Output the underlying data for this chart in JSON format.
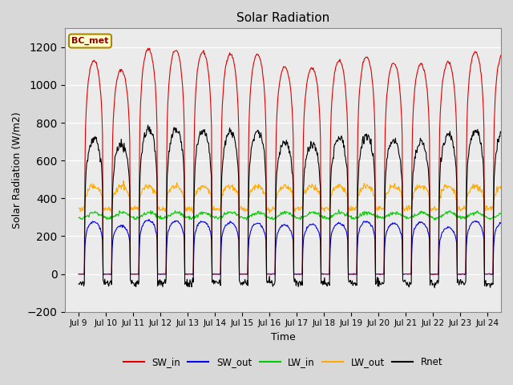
{
  "title": "Solar Radiation",
  "xlabel": "Time",
  "ylabel": "Solar Radiation (W/m2)",
  "ylim": [
    -200,
    1300
  ],
  "yticks": [
    -200,
    0,
    200,
    400,
    600,
    800,
    1000,
    1200
  ],
  "xlim_start": 8.5,
  "xlim_end": 24.5,
  "xtick_positions": [
    9,
    10,
    11,
    12,
    13,
    14,
    15,
    16,
    17,
    18,
    19,
    20,
    21,
    22,
    23,
    24
  ],
  "xtick_labels": [
    "Jul 9",
    "Jul 10",
    "Jul 11",
    "Jul 12",
    "Jul 13",
    "Jul 14",
    "Jul 15",
    "Jul 16",
    "Jul 17",
    "Jul 18",
    "Jul 19",
    "Jul 20",
    "Jul 21",
    "Jul 22",
    "Jul 23",
    "Jul 24"
  ],
  "colors": {
    "SW_in": "#dd0000",
    "SW_out": "#0000ee",
    "LW_in": "#00cc00",
    "LW_out": "#ffaa00",
    "Rnet": "#000000"
  },
  "legend_label": "BC_met",
  "legend_bg": "#ffffcc",
  "legend_edge": "#aa8800",
  "bg_color": "#d8d8d8",
  "plot_bg": "#ebebeb",
  "grid_color": "#ffffff",
  "n_days": 16,
  "start_day": 9,
  "figsize": [
    6.4,
    4.8
  ],
  "dpi": 100
}
